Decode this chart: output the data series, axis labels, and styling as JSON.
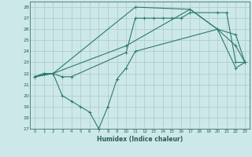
{
  "background_color": "#cce8e8",
  "grid_color": "#b0c8c8",
  "line_color": "#2d7a6e",
  "xlabel": "Humidex (Indice chaleur)",
  "xlim": [
    -0.5,
    23.5
  ],
  "ylim": [
    17,
    28.5
  ],
  "yticks": [
    17,
    18,
    19,
    20,
    21,
    22,
    23,
    24,
    25,
    26,
    27,
    28
  ],
  "xticks": [
    0,
    1,
    2,
    3,
    4,
    5,
    6,
    7,
    8,
    9,
    10,
    11,
    12,
    13,
    14,
    15,
    16,
    17,
    18,
    19,
    20,
    21,
    22,
    23
  ],
  "series": [
    {
      "x": [
        0,
        1,
        2,
        3,
        4,
        10,
        11,
        12,
        13,
        14,
        15,
        16,
        17,
        20,
        21,
        22,
        23
      ],
      "y": [
        21.7,
        22.0,
        22.0,
        21.7,
        21.7,
        23.9,
        27.0,
        27.0,
        27.0,
        27.0,
        27.0,
        27.0,
        27.5,
        27.5,
        27.5,
        23.0,
        23.0
      ]
    },
    {
      "x": [
        0,
        1,
        2,
        3,
        4,
        5,
        6,
        7,
        8,
        9,
        10,
        11,
        20,
        22,
        23
      ],
      "y": [
        21.7,
        22.0,
        22.0,
        20.0,
        19.5,
        19.0,
        18.5,
        17.0,
        19.0,
        21.5,
        22.5,
        24.0,
        26.0,
        24.5,
        23.0
      ]
    },
    {
      "x": [
        0,
        2,
        10,
        17,
        20,
        22,
        23
      ],
      "y": [
        21.7,
        22.0,
        24.5,
        27.8,
        26.0,
        25.5,
        23.0
      ]
    },
    {
      "x": [
        0,
        2,
        11,
        17,
        20,
        22,
        23
      ],
      "y": [
        21.7,
        22.0,
        28.0,
        27.8,
        26.0,
        22.5,
        23.0
      ]
    }
  ]
}
